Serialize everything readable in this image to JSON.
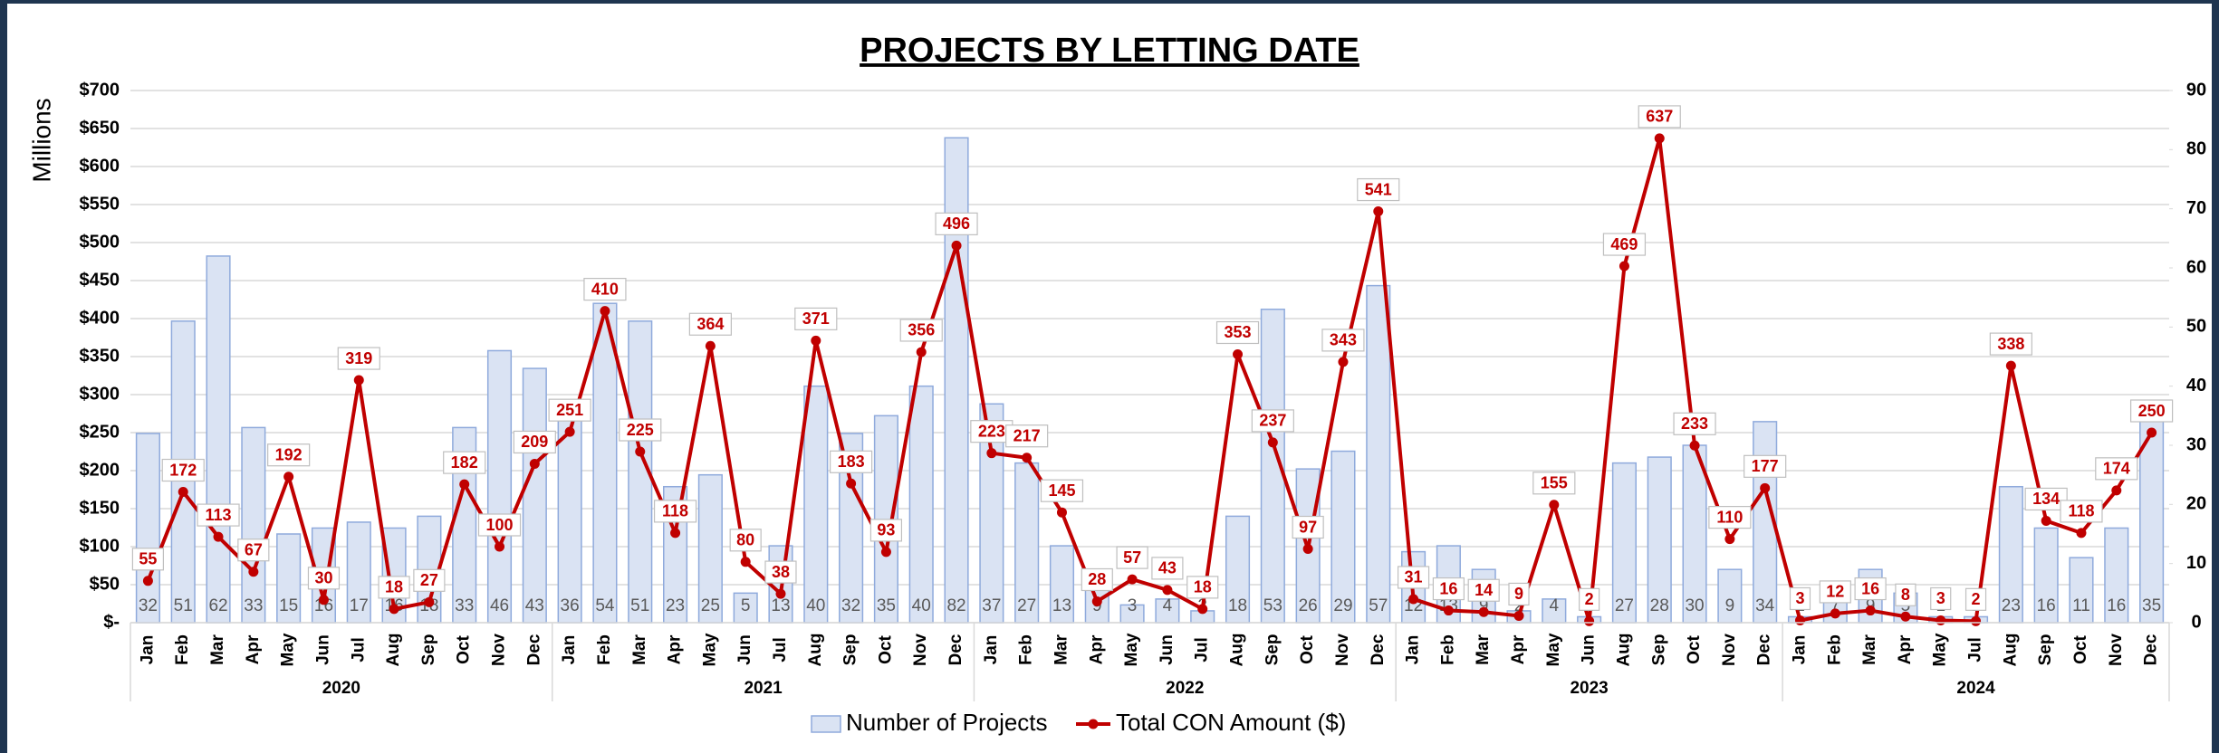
{
  "chart_data": {
    "type": "bar_line_combo",
    "title": "PROJECTS BY LETTING DATE",
    "y_axis_label": "Millions",
    "categories": [
      "Jan",
      "Feb",
      "Mar",
      "Apr",
      "May",
      "Jun",
      "Jul",
      "Aug",
      "Sep",
      "Oct",
      "Nov",
      "Dec",
      "Jan",
      "Feb",
      "Mar",
      "Apr",
      "May",
      "Jun",
      "Jul",
      "Aug",
      "Sep",
      "Oct",
      "Nov",
      "Dec",
      "Jan",
      "Feb",
      "Mar",
      "Apr",
      "May",
      "Jun",
      "Jul",
      "Aug",
      "Sep",
      "Oct",
      "Nov",
      "Dec",
      "Jan",
      "Feb",
      "Mar",
      "Apr",
      "May",
      "Jun",
      "Aug",
      "Sep",
      "Oct",
      "Nov",
      "Dec",
      "Jan",
      "Feb",
      "Mar",
      "Apr",
      "May",
      "Jul",
      "Aug",
      "Sep",
      "Oct",
      "Nov",
      "Dec"
    ],
    "year_groups": [
      {
        "label": "2020",
        "size": 12
      },
      {
        "label": "2021",
        "size": 12
      },
      {
        "label": "2022",
        "size": 12
      },
      {
        "label": "2023",
        "size": 11
      },
      {
        "label": "2024",
        "size": 11
      }
    ],
    "series": [
      {
        "name": "Number of Projects",
        "kind": "bar",
        "axis": "y2",
        "color": "#dae3f3",
        "edge_color": "#8faadc",
        "values": [
          32,
          51,
          62,
          33,
          15,
          16,
          17,
          16,
          18,
          33,
          46,
          43,
          36,
          54,
          51,
          23,
          25,
          5,
          13,
          40,
          32,
          35,
          40,
          82,
          37,
          27,
          13,
          9,
          3,
          4,
          2,
          18,
          53,
          26,
          29,
          57,
          12,
          13,
          9,
          2,
          4,
          1,
          27,
          28,
          30,
          9,
          34,
          1,
          7,
          9,
          5,
          1,
          1,
          23,
          16,
          11,
          16,
          35
        ]
      },
      {
        "name": "Total CON Amount ($)",
        "kind": "line",
        "axis": "y",
        "color": "#c00000",
        "values": [
          55,
          172,
          113,
          67,
          192,
          30,
          319,
          18,
          27,
          182,
          100,
          209,
          251,
          410,
          225,
          118,
          364,
          80,
          38,
          371,
          183,
          93,
          356,
          496,
          223,
          217,
          145,
          28,
          57,
          43,
          18,
          353,
          237,
          97,
          343,
          541,
          31,
          16,
          14,
          9,
          155,
          2,
          469,
          637,
          233,
          110,
          177,
          3,
          12,
          16,
          8,
          3,
          2,
          338,
          134,
          118,
          174,
          250
        ]
      }
    ],
    "ylim": [
      0,
      700
    ],
    "yticks": [
      {
        "value": 0,
        "label": "$-"
      },
      {
        "value": 50,
        "label": "$50"
      },
      {
        "value": 100,
        "label": "$100"
      },
      {
        "value": 150,
        "label": "$150"
      },
      {
        "value": 200,
        "label": "$200"
      },
      {
        "value": 250,
        "label": "$250"
      },
      {
        "value": 300,
        "label": "$300"
      },
      {
        "value": 350,
        "label": "$350"
      },
      {
        "value": 400,
        "label": "$400"
      },
      {
        "value": 450,
        "label": "$450"
      },
      {
        "value": 500,
        "label": "$500"
      },
      {
        "value": 550,
        "label": "$550"
      },
      {
        "value": 600,
        "label": "$600"
      },
      {
        "value": 650,
        "label": "$650"
      },
      {
        "value": 700,
        "label": "$700"
      }
    ],
    "y2lim": [
      0,
      90
    ],
    "y2ticks": [
      0,
      10,
      20,
      30,
      40,
      50,
      60,
      70,
      80,
      90
    ],
    "grid": true,
    "legend": "bottom"
  }
}
